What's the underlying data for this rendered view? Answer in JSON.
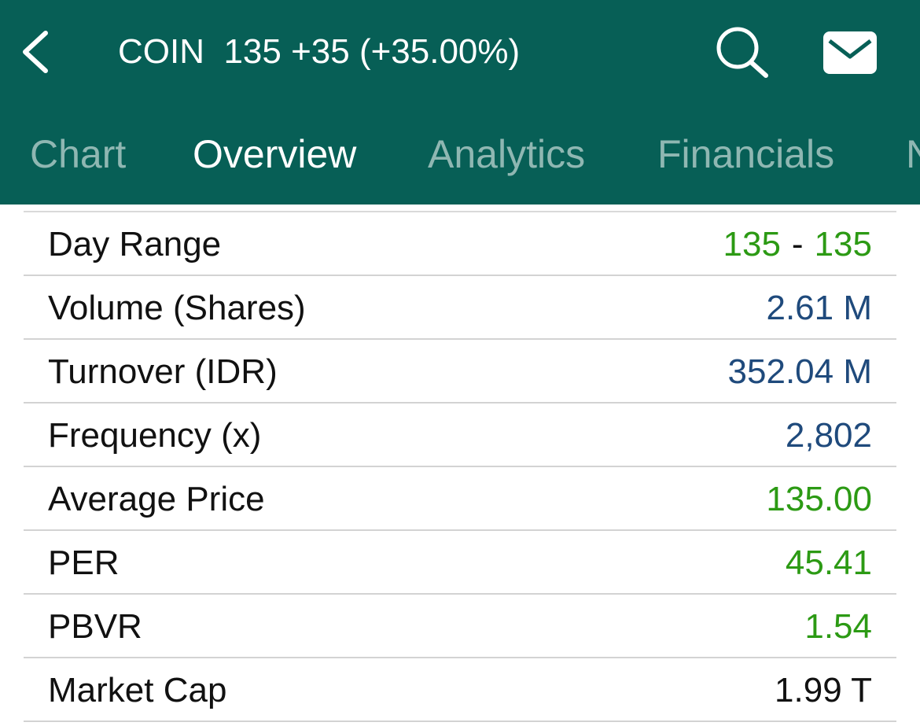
{
  "header": {
    "title": "COIN  135 +35 (+35.00%)",
    "back_icon": "chevron-left-icon",
    "search_icon": "search-icon",
    "mail_icon": "mail-icon"
  },
  "tabs": [
    {
      "label": "Chart",
      "active": false
    },
    {
      "label": "Overview",
      "active": true
    },
    {
      "label": "Analytics",
      "active": false
    },
    {
      "label": "Financials",
      "active": false
    },
    {
      "label": "N",
      "active": false
    }
  ],
  "stats": {
    "day_range": {
      "label": "Day Range",
      "low": "135",
      "sep": "-",
      "high": "135"
    },
    "volume": {
      "label": "Volume (Shares)",
      "value": "2.61 M"
    },
    "turnover": {
      "label": "Turnover (IDR)",
      "value": "352.04 M"
    },
    "frequency": {
      "label": "Frequency (x)",
      "value": "2,802"
    },
    "average_price": {
      "label": "Average Price",
      "value": "135.00"
    },
    "per": {
      "label": "PER",
      "value": "45.41"
    },
    "pbvr": {
      "label": "PBVR",
      "value": "1.54"
    },
    "market_cap": {
      "label": "Market Cap",
      "value": "1.99 T"
    }
  },
  "colors": {
    "header_bg": "#075f56",
    "positive": "#2c9a14",
    "neutral_value": "#1f4a7c",
    "text": "#111111"
  }
}
